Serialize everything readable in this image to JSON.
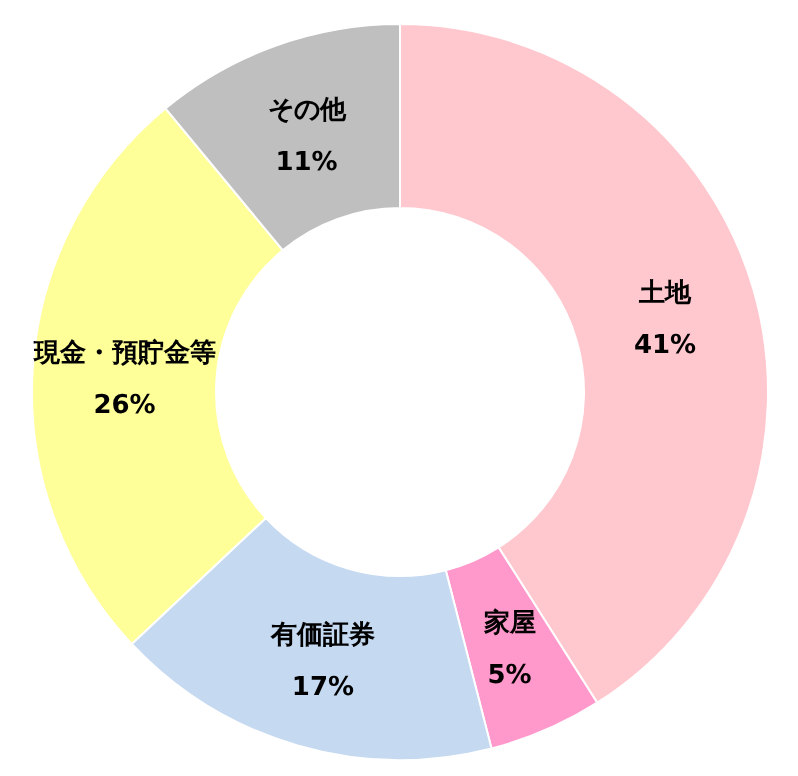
{
  "chart_data": {
    "type": "donut",
    "categories": [
      "土地",
      "家屋",
      "有価証券",
      "現金・預貯金等",
      "その他"
    ],
    "values": [
      41,
      5,
      17,
      26,
      11
    ],
    "colors": [
      "#ffc7ce",
      "#ff99cc",
      "#c5d9f1",
      "#ffff99",
      "#bfbfbf"
    ],
    "value_labels": [
      "41%",
      "5%",
      "17%",
      "26%",
      "11%"
    ],
    "legend": false
  }
}
